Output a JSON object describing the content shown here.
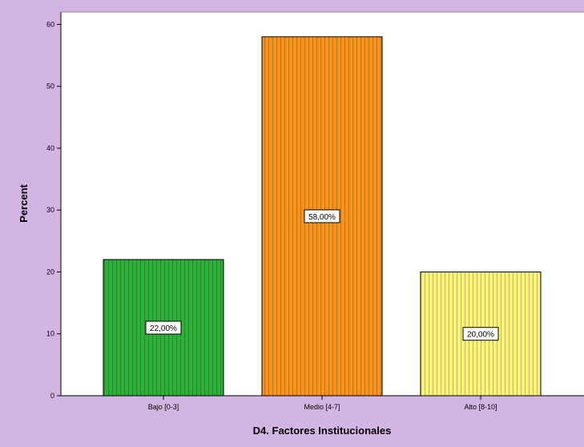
{
  "chart_data": {
    "type": "bar",
    "categories": [
      "Bajo [0-3]",
      "Medio [4-7]",
      "Alto [8-10]"
    ],
    "values": [
      22,
      58,
      20
    ],
    "data_labels": [
      "22,00%",
      "58,00%",
      "20,00%"
    ],
    "bar_colors": [
      "#2eb03a",
      "#f7941d",
      "#f7f37a"
    ],
    "xlabel": "D4. Factores Institucionales",
    "ylabel": "Percent",
    "ylim": [
      0,
      62
    ],
    "yticks": [
      0,
      10,
      20,
      30,
      40,
      50,
      60
    ],
    "grid": false,
    "bar_pattern": "vertical-stripes"
  },
  "colors": {
    "outer_background": "#d3b5e3",
    "plot_background": "#ffffff"
  }
}
